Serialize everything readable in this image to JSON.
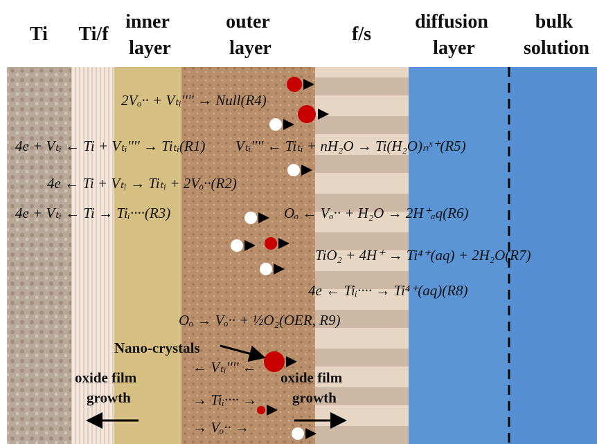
{
  "header": {
    "columns": [
      "Ti",
      "Ti/f",
      "inner layer",
      "outer layer",
      "f/s",
      "diffusion layer",
      "bulk solution"
    ]
  },
  "reactions": [
    "2Vₒ·· + Vₜᵢ'''' → Null(R4)",
    "4e + Vₜᵢ ← Ti + Vₜᵢ'''' → Tiₜᵢ(R1)",
    "Vₜᵢ'''' ← Tiₜᵢ + nH₂O → Ti(H₂O)ₙˣ⁺(R5)",
    "4e ← Ti + Vₜᵢ → Tiₜᵢ + 2Vₒ··(R2)",
    "4e + Vₜᵢ ← Ti → Tiᵢ····(R3)",
    "Oₒ ← Vₒ·· + H₂O → 2H⁺ₐq(R6)",
    "TiO₂ + 4H⁺ → Ti⁴⁺(aq) + 2H₂O(R7)",
    "4e ← Tiᵢ···· → Ti⁴⁺(aq)(R8)",
    "Oₒ → Vₒ·· + ½O₂(OER, R9)",
    "← Vₜᵢ'''' ←",
    "→ Tiᵢ···· →",
    "→ Vₒ·· →"
  ],
  "labels": {
    "nano_crystals": "Nano-crystals",
    "growth_left": [
      "oxide film",
      "growth"
    ],
    "growth_right": [
      "oxide film",
      "growth"
    ]
  }
}
